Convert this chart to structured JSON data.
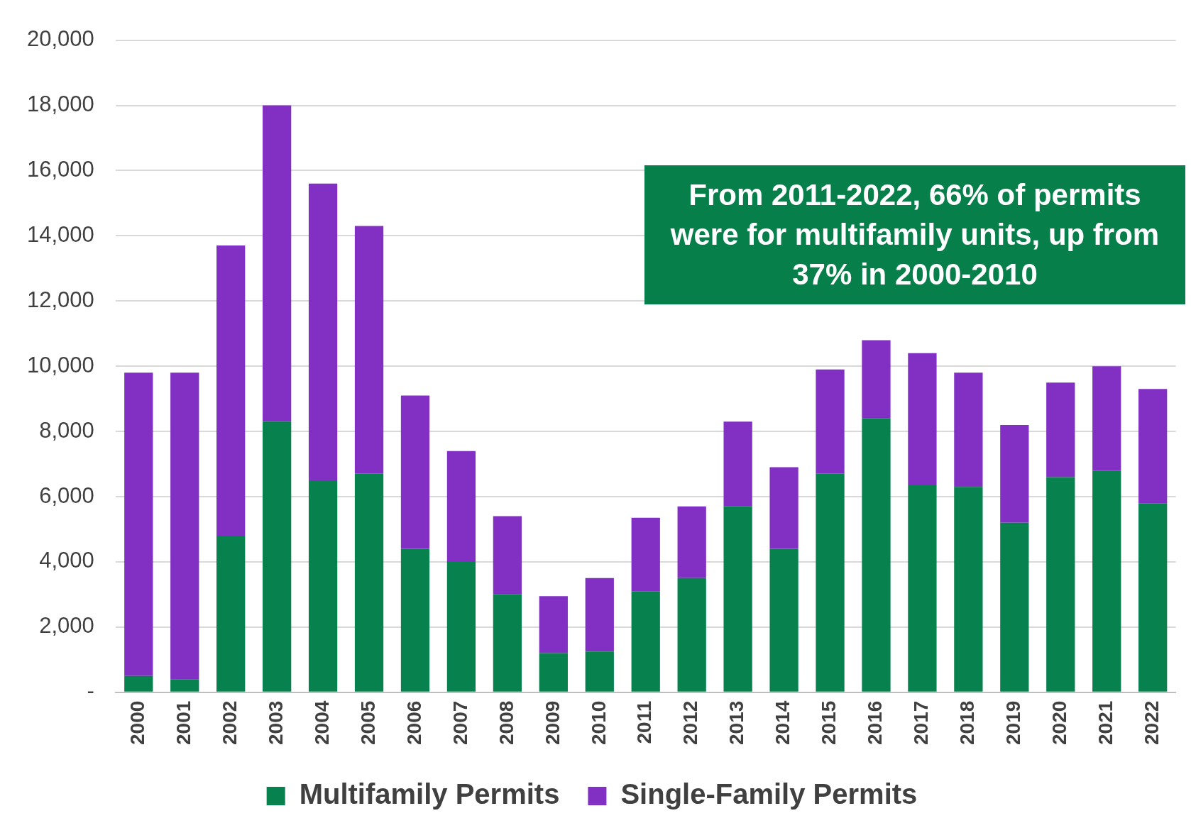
{
  "chart_data": {
    "type": "bar",
    "stacked": true,
    "categories": [
      "2000",
      "2001",
      "2002",
      "2003",
      "2004",
      "2005",
      "2006",
      "2007",
      "2008",
      "2009",
      "2010",
      "2011",
      "2012",
      "2013",
      "2014",
      "2015",
      "2016",
      "2017",
      "2018",
      "2019",
      "2020",
      "2021",
      "2022"
    ],
    "series": [
      {
        "name": "Multifamily Permits",
        "color": "#07814e",
        "values": [
          500,
          400,
          4800,
          8300,
          6500,
          6700,
          4400,
          4000,
          3000,
          1200,
          1250,
          3100,
          3500,
          5700,
          4400,
          6700,
          8400,
          6350,
          6300,
          5200,
          6600,
          6800,
          5800
        ]
      },
      {
        "name": "Single-Family Permits",
        "color": "#8230c4",
        "values": [
          9300,
          9400,
          8900,
          9700,
          9100,
          7600,
          4700,
          3400,
          2400,
          1750,
          2250,
          2250,
          2200,
          2600,
          2500,
          3200,
          2400,
          4050,
          3500,
          3000,
          2900,
          3200,
          3500
        ]
      }
    ],
    "ylim": [
      0,
      20000
    ],
    "yticks": [
      {
        "value": 0,
        "label": "-"
      },
      {
        "value": 2000,
        "label": "2,000"
      },
      {
        "value": 4000,
        "label": "4,000"
      },
      {
        "value": 6000,
        "label": "6,000"
      },
      {
        "value": 8000,
        "label": "8,000"
      },
      {
        "value": 10000,
        "label": "10,000"
      },
      {
        "value": 12000,
        "label": "12,000"
      },
      {
        "value": 14000,
        "label": "14,000"
      },
      {
        "value": 16000,
        "label": "16,000"
      },
      {
        "value": 18000,
        "label": "18,000"
      },
      {
        "value": 20000,
        "label": "20,000"
      }
    ],
    "grid": "y",
    "legend": "bottom",
    "annotations": [
      "From 2011-2022, 66% of permits were for multifamily units, up from 37% in 2000-2010"
    ]
  }
}
